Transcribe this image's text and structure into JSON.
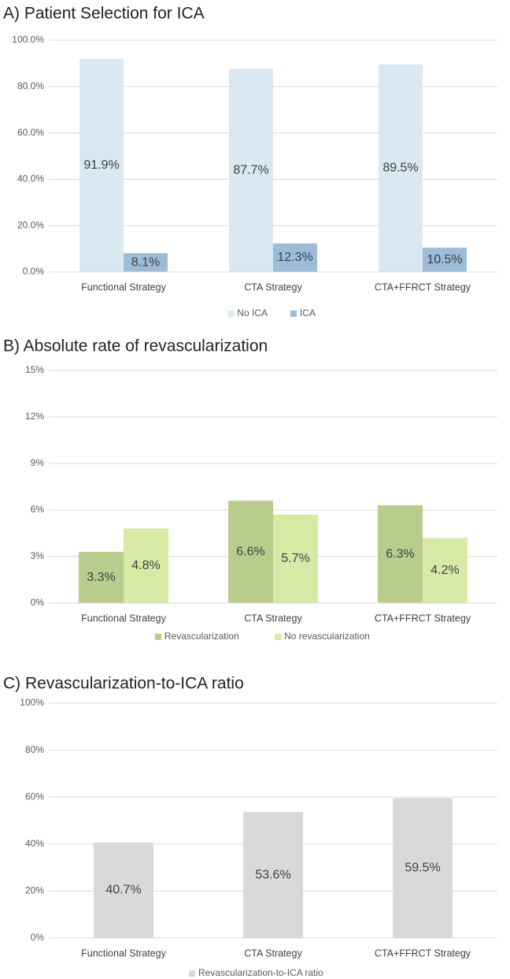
{
  "chart_data": [
    {
      "type": "bar",
      "title": "A) Patient Selection for ICA",
      "categories": [
        "Functional Strategy",
        "CTA Strategy",
        "CTA+FFRCT Strategy"
      ],
      "series": [
        {
          "name": "No ICA",
          "color": "#dae8f2",
          "values": [
            91.9,
            87.7,
            89.5
          ],
          "value_labels": [
            "91.9%",
            "87.7%",
            "89.5%"
          ]
        },
        {
          "name": "ICA",
          "color": "#9dbcd8",
          "values": [
            8.1,
            12.3,
            10.5
          ],
          "value_labels": [
            "8.1%",
            "12.3%",
            "10.5%"
          ]
        }
      ],
      "ylim": [
        0,
        100
      ],
      "yticks": [
        {
          "value": 0,
          "label": "0.0%"
        },
        {
          "value": 20,
          "label": "20.0%"
        },
        {
          "value": 40,
          "label": "40.0%"
        },
        {
          "value": 60,
          "label": "60.0%"
        },
        {
          "value": 80,
          "label": "80.0%"
        },
        {
          "value": 100,
          "label": "100.0%"
        }
      ],
      "grid": true,
      "legend": "bottom"
    },
    {
      "type": "bar",
      "title": "B) Absolute rate of revascularization",
      "categories": [
        "Functional Strategy",
        "CTA Strategy",
        "CTA+FFRCT Strategy"
      ],
      "series": [
        {
          "name": "Revascularization",
          "color": "#b8cc8e",
          "values": [
            3.3,
            6.6,
            6.3
          ],
          "value_labels": [
            "3.3%",
            "6.6%",
            "6.3%"
          ]
        },
        {
          "name": "No revascularization",
          "color": "#d8e9a6",
          "values": [
            4.8,
            5.7,
            4.2
          ],
          "value_labels": [
            "4.8%",
            "5.7%",
            "4.2%"
          ]
        }
      ],
      "ylim": [
        0,
        15
      ],
      "yticks": [
        {
          "value": 0,
          "label": "0%"
        },
        {
          "value": 3,
          "label": "3%"
        },
        {
          "value": 6,
          "label": "6%"
        },
        {
          "value": 9,
          "label": "9%"
        },
        {
          "value": 12,
          "label": "12%"
        },
        {
          "value": 15,
          "label": "15%"
        }
      ],
      "grid": true,
      "legend": "bottom"
    },
    {
      "type": "bar",
      "title": "C) Revascularization-to-ICA ratio",
      "categories": [
        "Functional Strategy",
        "CTA Strategy",
        "CTA+FFRCT Strategy"
      ],
      "series": [
        {
          "name": "Revascularization-to-ICA ratio",
          "color": "#d9d9d9",
          "values": [
            40.7,
            53.6,
            59.5
          ],
          "value_labels": [
            "40.7%",
            "53.6%",
            "59.5%"
          ]
        }
      ],
      "ylim": [
        0,
        100
      ],
      "yticks": [
        {
          "value": 0,
          "label": "0%"
        },
        {
          "value": 20,
          "label": "20%"
        },
        {
          "value": 40,
          "label": "40%"
        },
        {
          "value": 60,
          "label": "60%"
        },
        {
          "value": 80,
          "label": "80%"
        },
        {
          "value": 100,
          "label": "100%"
        }
      ],
      "grid": true,
      "legend": "bottom"
    }
  ]
}
